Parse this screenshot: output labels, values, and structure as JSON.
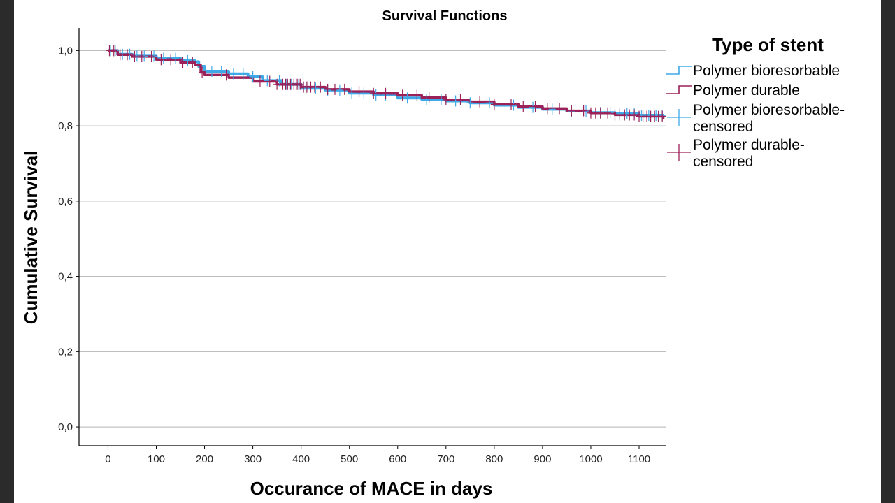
{
  "chart_data": {
    "type": "line",
    "title": "Survival Functions",
    "xlabel": "Occurance of MACE in days",
    "ylabel": "Cumulative Survival",
    "xlim": [
      -60,
      1155
    ],
    "ylim": [
      -0.05,
      1.06
    ],
    "x_ticks": [
      0,
      100,
      200,
      300,
      400,
      500,
      600,
      700,
      800,
      900,
      1000,
      1100
    ],
    "y_ticks": [
      0.0,
      0.2,
      0.4,
      0.6,
      0.8,
      1.0
    ],
    "y_tick_labels": [
      "0,0",
      "0,2",
      "0,4",
      "0,6",
      "0,8",
      "1,0"
    ],
    "grid": "horizontal",
    "legend": {
      "title": "Type of stent",
      "placement": "right",
      "entries": [
        {
          "label": "Polymer bioresorbable",
          "kind": "step",
          "series": 0
        },
        {
          "label": "Polymer durable",
          "kind": "step",
          "series": 1
        },
        {
          "label_lines": [
            "Polymer bioresorbable-",
            "censored"
          ],
          "kind": "censor",
          "series": 0
        },
        {
          "label_lines": [
            "Polymer durable-",
            "censored"
          ],
          "kind": "censor",
          "series": 1
        }
      ]
    },
    "series": [
      {
        "name": "Polymer bioresorbable",
        "color": "#3fa9e8",
        "x": [
          0,
          20,
          50,
          100,
          150,
          180,
          188,
          200,
          250,
          290,
          320,
          360,
          400,
          450,
          500,
          550,
          600,
          650,
          700,
          750,
          800,
          850,
          900,
          950,
          1000,
          1050,
          1100,
          1150
        ],
        "y": [
          1.0,
          0.99,
          0.985,
          0.979,
          0.973,
          0.97,
          0.958,
          0.945,
          0.938,
          0.93,
          0.92,
          0.91,
          0.9,
          0.895,
          0.887,
          0.882,
          0.874,
          0.87,
          0.866,
          0.861,
          0.855,
          0.849,
          0.844,
          0.839,
          0.835,
          0.832,
          0.828,
          0.824
        ]
      },
      {
        "name": "Polymer durable",
        "color": "#9b2158",
        "x": [
          0,
          20,
          50,
          100,
          150,
          180,
          192,
          200,
          250,
          300,
          350,
          400,
          450,
          500,
          550,
          600,
          650,
          700,
          750,
          800,
          850,
          900,
          950,
          1000,
          1050,
          1100,
          1150
        ],
        "y": [
          1.0,
          0.989,
          0.984,
          0.976,
          0.968,
          0.962,
          0.942,
          0.935,
          0.928,
          0.918,
          0.91,
          0.903,
          0.897,
          0.891,
          0.886,
          0.881,
          0.875,
          0.869,
          0.864,
          0.857,
          0.851,
          0.846,
          0.84,
          0.834,
          0.829,
          0.825,
          0.818
        ]
      }
    ],
    "censored": [
      {
        "series": "Polymer bioresorbable",
        "x": [
          5,
          15,
          30,
          45,
          60,
          75,
          95,
          115,
          140,
          165,
          215,
          235,
          260,
          280,
          300,
          330,
          355,
          370,
          380,
          395,
          410,
          430,
          455,
          480,
          505,
          530,
          555,
          575,
          620,
          660,
          690,
          720,
          750,
          790,
          840,
          880,
          920,
          960,
          990,
          1020,
          1040,
          1060,
          1075,
          1090,
          1105,
          1120,
          1135,
          1148
        ]
      },
      {
        "series": "Polymer durable",
        "x": [
          3,
          12,
          25,
          40,
          55,
          70,
          90,
          110,
          130,
          155,
          175,
          195,
          245,
          315,
          335,
          350,
          362,
          368,
          372,
          378,
          385,
          392,
          398,
          405,
          412,
          420,
          428,
          440,
          455,
          470,
          490,
          520,
          550,
          575,
          610,
          640,
          665,
          700,
          730,
          770,
          800,
          835,
          860,
          885,
          910,
          935,
          960,
          985,
          1000,
          1010,
          1020,
          1035,
          1050,
          1060,
          1070,
          1080,
          1090,
          1100,
          1108,
          1116,
          1124,
          1132,
          1140,
          1148
        ]
      }
    ]
  }
}
